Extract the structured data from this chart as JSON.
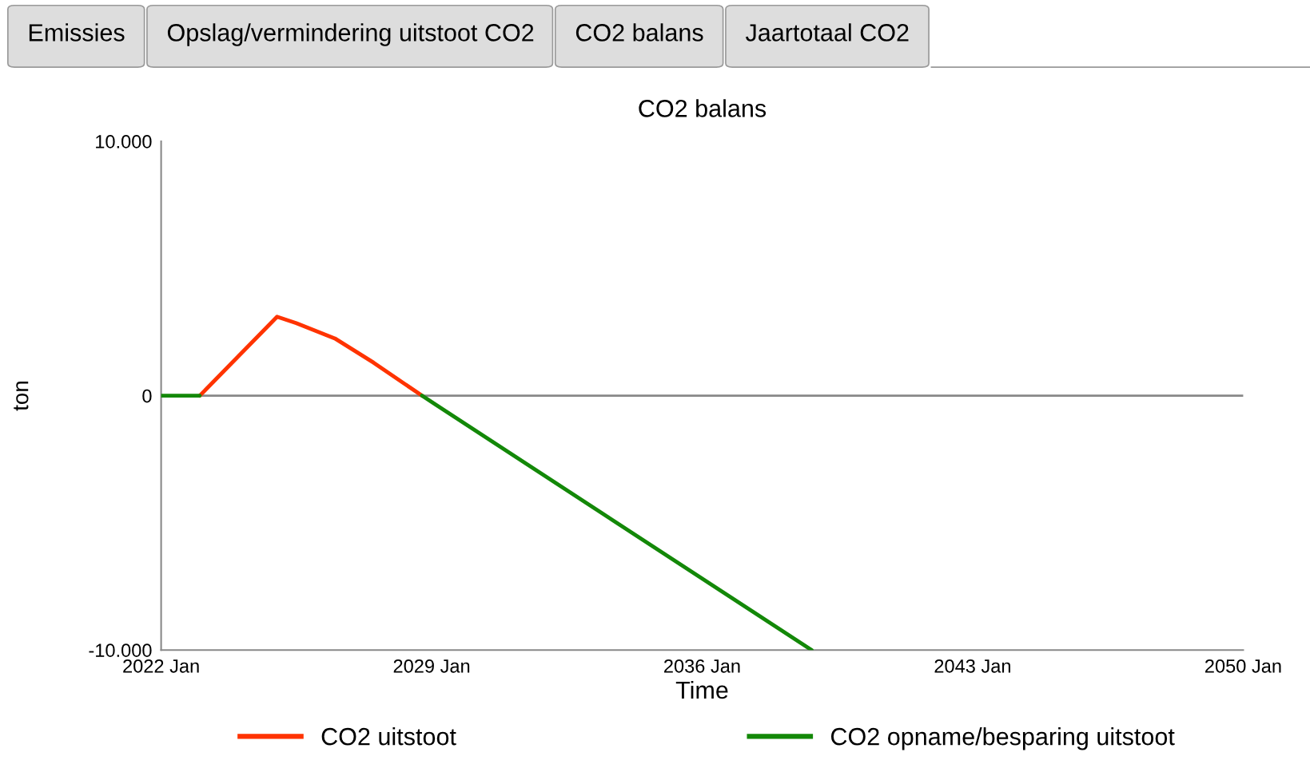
{
  "chart_data": {
    "type": "line",
    "title": "CO2 balans",
    "xlabel": "Time",
    "ylabel": "ton",
    "annotations": [
      "Emissies",
      "Opslag/vermindering uitstoot CO2",
      "CO2 balans",
      "Jaartotaal CO2"
    ],
    "series": [
      {
        "name": "CO2 uitstoot",
        "color": "#ff3300",
        "x": [
          "2023-01",
          "2024-01",
          "2025-01",
          "2025-07",
          "2026-07",
          "2027-07",
          "2028-10"
        ],
        "values": [
          0,
          1550,
          3100,
          2850,
          2250,
          1300,
          0
        ]
      },
      {
        "name": "CO2 opname/besparing uitstoot",
        "color": "#138808",
        "x": [
          "2022-01",
          "2023-01",
          "2025-01",
          "2028-10",
          "2038-11"
        ],
        "values": [
          0,
          0,
          null,
          0,
          -10000
        ]
      }
    ],
    "xlim": [
      "2022-01",
      "2050-01"
    ],
    "xticks": [
      {
        "value": "2022-01",
        "label": "2022 Jan"
      },
      {
        "value": "2029-01",
        "label": "2029 Jan"
      },
      {
        "value": "2036-01",
        "label": "2036 Jan"
      },
      {
        "value": "2043-01",
        "label": "2043 Jan"
      },
      {
        "value": "2050-01",
        "label": "2050 Jan"
      }
    ],
    "ylim": [
      -10000,
      10000
    ],
    "yticks": [
      {
        "value": -10000,
        "label": "-10.000"
      },
      0,
      {
        "value": 10000,
        "label": "10.000"
      }
    ],
    "ref_lines": [
      {
        "axis": "y",
        "value": 0,
        "label": null,
        "color": "#888888"
      }
    ],
    "legend": "bottom",
    "grid": false,
    "marker": "none",
    "line_style": "solid"
  }
}
